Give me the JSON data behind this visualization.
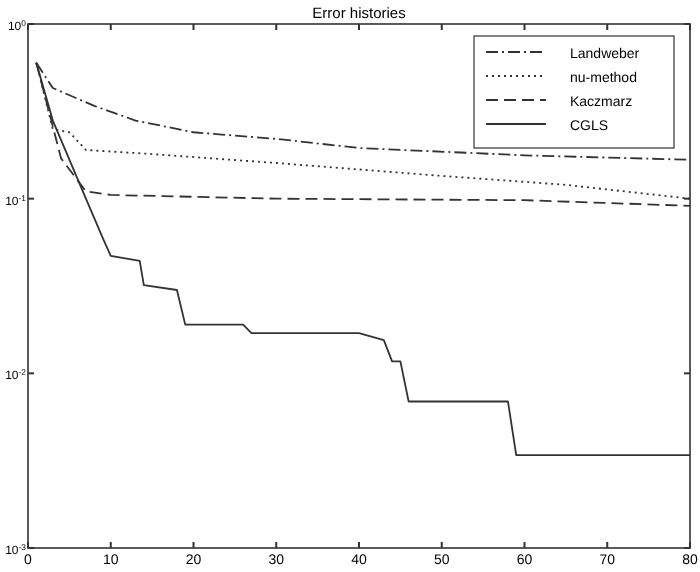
{
  "chart_data": {
    "type": "line",
    "title": "Error histories",
    "log": "y",
    "legend": "top right",
    "grid": false,
    "xlim": [
      0,
      80
    ],
    "xticks": [
      0,
      10,
      20,
      30,
      40,
      50,
      60,
      70,
      80
    ],
    "ylim": [
      0.001,
      1
    ],
    "yticks": [
      {
        "value": 0.001,
        "label": "10$^{-3}$"
      },
      {
        "value": 0.01,
        "label": "10$^{-2}$"
      },
      {
        "value": 0.1,
        "label": "10$^{-1}$"
      },
      {
        "value": 1,
        "label": "10$^{0}$"
      }
    ],
    "series": [
      {
        "name": "Landweber",
        "color": "#333333",
        "line_style": "dashdot",
        "x": [
          1,
          3,
          8,
          13,
          20,
          30,
          40,
          60,
          80
        ],
        "values": [
          0.6,
          0.43,
          0.34,
          0.28,
          0.24,
          0.22,
          0.195,
          0.177,
          0.167
        ]
      },
      {
        "name": "nu-method",
        "color": "#333333",
        "line_style": "dotted",
        "x": [
          1,
          3,
          5,
          7,
          15,
          30,
          50,
          65,
          80
        ],
        "values": [
          0.6,
          0.25,
          0.24,
          0.19,
          0.18,
          0.16,
          0.135,
          0.12,
          0.1
        ]
      },
      {
        "name": "Kaczmarz",
        "color": "#333333",
        "line_style": "dashed",
        "x": [
          1,
          4,
          7,
          10,
          30,
          60,
          80
        ],
        "values": [
          0.6,
          0.17,
          0.11,
          0.105,
          0.1,
          0.098,
          0.091
        ]
      },
      {
        "name": "CGLS",
        "color": "#333333",
        "line_style": "solid",
        "x": [
          1,
          3,
          7,
          9,
          10,
          13.5,
          14,
          18,
          19,
          26,
          27,
          40,
          43,
          44,
          45,
          46,
          58,
          59,
          80
        ],
        "values": [
          0.6,
          0.28,
          0.1,
          0.06,
          0.047,
          0.044,
          0.032,
          0.03,
          0.019,
          0.019,
          0.017,
          0.017,
          0.0155,
          0.0117,
          0.0117,
          0.0069,
          0.0069,
          0.0034,
          0.0034
        ]
      }
    ]
  }
}
